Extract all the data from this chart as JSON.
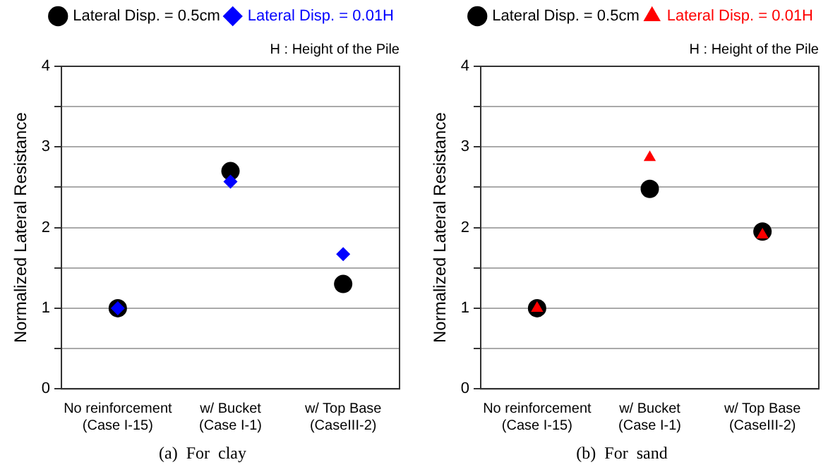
{
  "chart_data": [
    {
      "type": "scatter",
      "title": "(a)  For  clay",
      "ylabel": "Normalized Lateral Resistance",
      "categories": [
        "No reinforcement\n(Case I-15)",
        "w/ Bucket\n(Case I-1)",
        "w/ Top Base\n(CaseIII-2)"
      ],
      "series": [
        {
          "name": "Lateral Disp. = 0.5cm",
          "color": "#000000",
          "marker": "circle",
          "values": [
            1,
            2.7,
            1.3
          ]
        },
        {
          "name": "Lateral Disp. = 0.01H",
          "color": "#0000ff",
          "marker": "diamond",
          "values": [
            1,
            2.57,
            1.67
          ]
        }
      ],
      "ylim": [
        0,
        4
      ],
      "yticks": [
        0,
        {
          "value": 0.5,
          "label": null
        },
        1,
        {
          "value": 1.5,
          "label": null
        },
        2,
        {
          "value": 2.5,
          "label": null
        },
        3,
        {
          "value": 3.5,
          "label": null
        },
        4
      ],
      "grid": "y",
      "legend": "top",
      "annotations": [
        "H : Height of the Pile"
      ]
    },
    {
      "type": "scatter",
      "title": "(b)  For  sand",
      "ylabel": "Normalized Lateral Resistance",
      "categories": [
        "No reinforcement\n(Case I-15)",
        "w/ Bucket\n(Case I-1)",
        "w/ Top Base\n(CaseIII-2)"
      ],
      "series": [
        {
          "name": "Lateral Disp. = 0.5cm",
          "color": "#000000",
          "marker": "circle",
          "values": [
            1,
            2.48,
            1.95
          ]
        },
        {
          "name": "Lateral Disp. = 0.01H",
          "color": "#ff0000",
          "marker": "triangle",
          "values": [
            1,
            2.87,
            1.91
          ]
        }
      ],
      "ylim": [
        0,
        4
      ],
      "yticks": [
        0,
        {
          "value": 0.5,
          "label": null
        },
        1,
        {
          "value": 1.5,
          "label": null
        },
        2,
        {
          "value": 2.5,
          "label": null
        },
        3,
        {
          "value": 3.5,
          "label": null
        },
        4
      ],
      "grid": "y",
      "legend": "top",
      "annotations": [
        "H : Height of the Pile"
      ]
    }
  ]
}
